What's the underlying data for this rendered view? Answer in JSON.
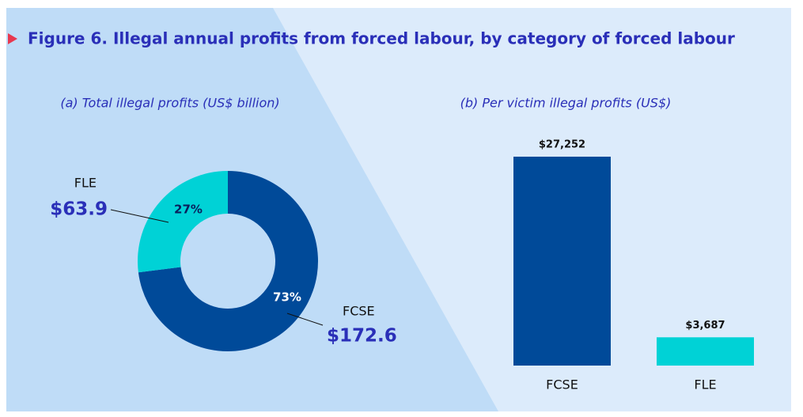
{
  "title": "Figure 6. Illegal annual profits from forced labour, by category of forced labour",
  "chart_data": [
    {
      "type": "donut",
      "title": "(a) Total illegal profits (US$ billion)",
      "categories": [
        "FCSE",
        "FLE"
      ],
      "values": [
        73,
        27
      ],
      "value_labels": [
        "73%",
        "27%"
      ],
      "amounts": [
        172.6,
        63.9
      ],
      "amount_labels": [
        "$172.6",
        "$63.9"
      ],
      "colors": [
        "#004a99",
        "#00d2d6"
      ]
    },
    {
      "type": "bar",
      "title": "(b) Per victim illegal profits (US$)",
      "categories": [
        "FCSE",
        "FLE"
      ],
      "values": [
        27252,
        3687
      ],
      "value_labels": [
        "$27,252",
        "$3,687"
      ],
      "colors": [
        "#004a99",
        "#00d2d6"
      ]
    }
  ]
}
